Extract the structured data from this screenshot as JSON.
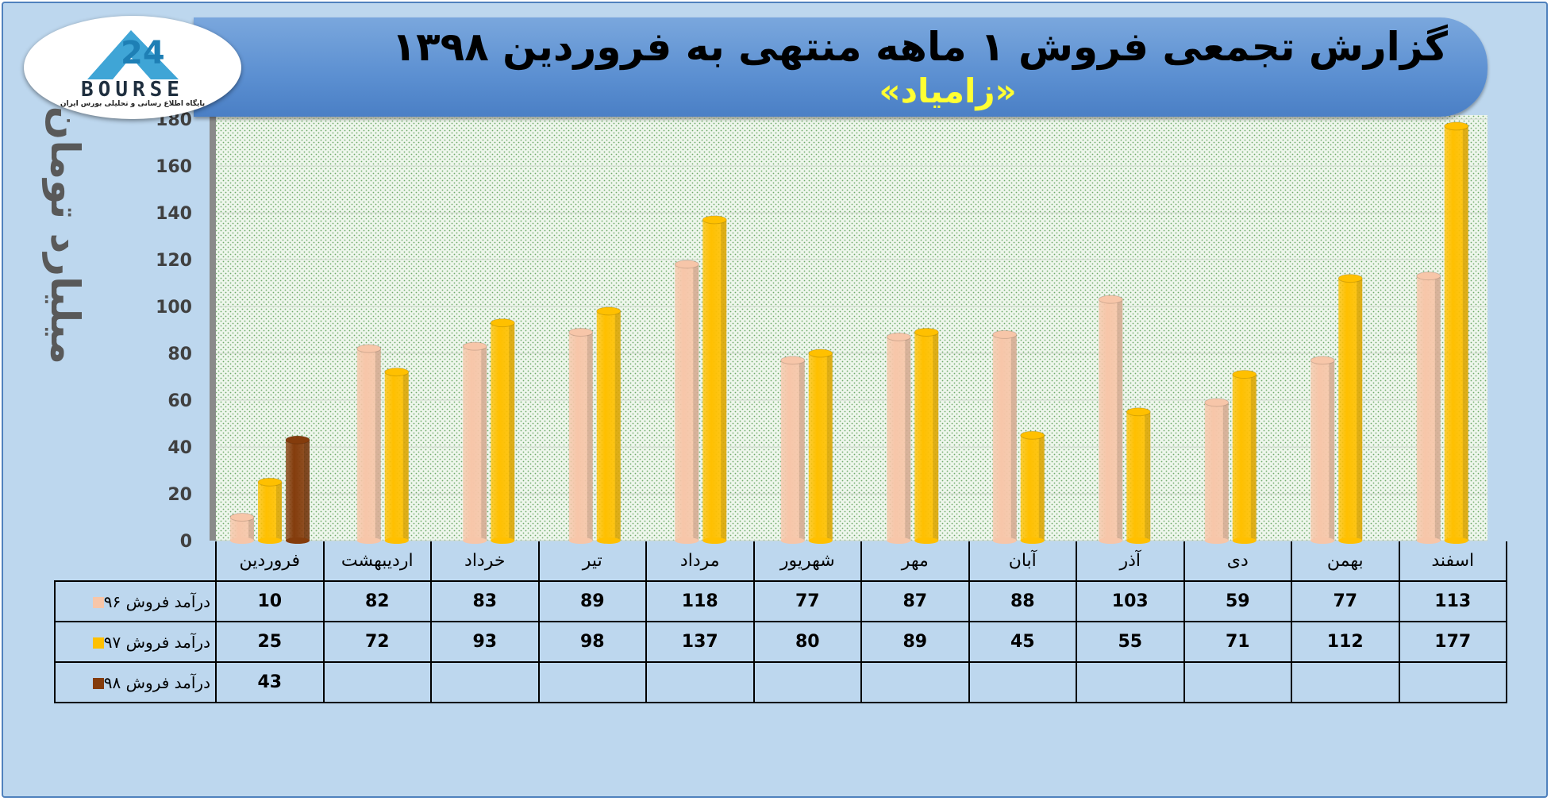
{
  "header": {
    "title": "گزارش تجمعی فروش ۱ ماهه منتهی به فروردین ۱۳۹۸",
    "subtitle": "«زامیاد»"
  },
  "logo": {
    "text": "BOURSE",
    "subtext": "پایگاه اطلاع رسانی و تحلیلی بورس ایران"
  },
  "colors": {
    "series96": "#f7c6a9",
    "series97": "#ffc000",
    "series98": "#843c0c",
    "background": "#bdd7ee",
    "banner": "#5b8fd1"
  },
  "chart_data": {
    "type": "bar",
    "title": "گزارش تجمعی فروش ۱ ماهه منتهی به فروردین ۱۳۹۸",
    "subtitle": "«زامیاد»",
    "ylabel": "میلیارد تومان",
    "xlabel": "",
    "ylim": [
      0,
      180
    ],
    "yticks": [
      0,
      20,
      40,
      60,
      80,
      100,
      120,
      140,
      160,
      180
    ],
    "grid": true,
    "legend_placement": "table-left",
    "categories": [
      "فروردین",
      "اردیبهشت",
      "خرداد",
      "تیر",
      "مرداد",
      "شهریور",
      "مهر",
      "آبان",
      "آذر",
      "دی",
      "بهمن",
      "اسفند"
    ],
    "series": [
      {
        "name": "درآمد فروش ۹۶",
        "color": "#f7c6a9",
        "values": [
          10,
          82,
          83,
          89,
          118,
          77,
          87,
          88,
          103,
          59,
          77,
          113
        ]
      },
      {
        "name": "درآمد فروش ۹۷",
        "color": "#ffc000",
        "values": [
          25,
          72,
          93,
          98,
          137,
          80,
          89,
          45,
          55,
          71,
          112,
          177
        ]
      },
      {
        "name": "درآمد فروش ۹۸",
        "color": "#843c0c",
        "values": [
          43,
          null,
          null,
          null,
          null,
          null,
          null,
          null,
          null,
          null,
          null,
          null
        ]
      }
    ]
  }
}
